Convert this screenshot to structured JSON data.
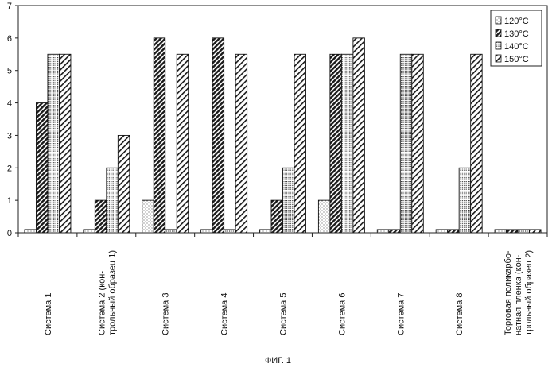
{
  "chart_data": {
    "type": "bar",
    "categories": [
      "Система 1",
      "Система 2 (кон-\nтрольный образец 1)",
      "Система 3",
      "Система 4",
      "Система 5",
      "Система 6",
      "Система 7",
      "Система 8",
      "Торговая поликарбо-\nнатная пленка (кон-\nтрольный образец 2)"
    ],
    "series": [
      {
        "name": "120°C",
        "pattern": "dots",
        "values": [
          0.1,
          0.1,
          1,
          0.1,
          0.1,
          1,
          0.1,
          0.1,
          0.1
        ]
      },
      {
        "name": "130°C",
        "pattern": "dense-hatch",
        "values": [
          4,
          1,
          6,
          6,
          1,
          5.5,
          0.1,
          0.1,
          0.1
        ]
      },
      {
        "name": "140°C",
        "pattern": "fine-dots",
        "values": [
          5.5,
          2,
          0.1,
          0.1,
          2,
          5.5,
          5.5,
          2,
          0.1
        ]
      },
      {
        "name": "150°C",
        "pattern": "wide-hatch",
        "values": [
          5.5,
          3,
          5.5,
          5.5,
          5.5,
          6,
          5.5,
          5.5,
          0.1
        ]
      }
    ],
    "y_ticks": [
      "0",
      "1",
      "2",
      "3",
      "4",
      "5",
      "6",
      "7"
    ],
    "ylim": [
      0,
      7
    ],
    "grid": false,
    "legend_position": "top-right",
    "caption": "ФИГ. 1"
  }
}
